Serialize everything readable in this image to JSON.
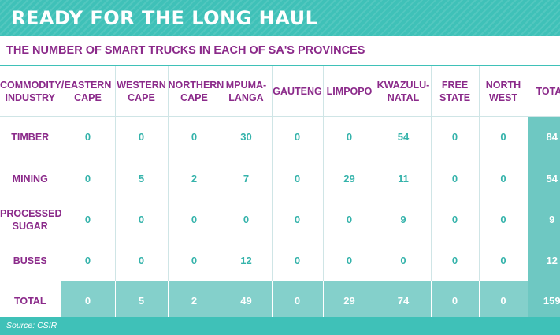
{
  "title": "READY FOR THE LONG HAUL",
  "subtitle": "THE NUMBER OF SMART TRUCKS IN EACH OF SA'S PROVINCES",
  "table": {
    "headers": [
      {
        "line1": "COMMODITY/",
        "line2": "INDUSTRY"
      },
      {
        "line1": "EASTERN",
        "line2": "CAPE"
      },
      {
        "line1": "WESTERN",
        "line2": "CAPE"
      },
      {
        "line1": "NORTHERN",
        "line2": "CAPE"
      },
      {
        "line1": "MPUMA-",
        "line2": "LANGA"
      },
      {
        "line1": "GAUTENG",
        "line2": ""
      },
      {
        "line1": "LIMPOPO",
        "line2": ""
      },
      {
        "line1": "KWAZULU-",
        "line2": "NATAL"
      },
      {
        "line1": "FREE",
        "line2": "STATE"
      },
      {
        "line1": "NORTH",
        "line2": "WEST"
      },
      {
        "line1": "TOTAL",
        "line2": ""
      }
    ],
    "rows": [
      {
        "label1": "TIMBER",
        "label2": "",
        "values": [
          "0",
          "0",
          "0",
          "30",
          "0",
          "0",
          "54",
          "0",
          "0",
          "84"
        ]
      },
      {
        "label1": "MINING",
        "label2": "",
        "values": [
          "0",
          "5",
          "2",
          "7",
          "0",
          "29",
          "11",
          "0",
          "0",
          "54"
        ]
      },
      {
        "label1": "PROCESSED",
        "label2": "SUGAR",
        "values": [
          "0",
          "0",
          "0",
          "0",
          "0",
          "0",
          "9",
          "0",
          "0",
          "9"
        ]
      },
      {
        "label1": "BUSES",
        "label2": "",
        "values": [
          "0",
          "0",
          "0",
          "12",
          "0",
          "0",
          "0",
          "0",
          "0",
          "12"
        ]
      },
      {
        "label1": "TOTAL",
        "label2": "",
        "values": [
          "0",
          "5",
          "2",
          "49",
          "0",
          "29",
          "74",
          "0",
          "0",
          "159"
        ]
      }
    ]
  },
  "source": "Source: CSIR",
  "colors": {
    "teal": "#3fc1b8",
    "purple": "#8b2a8a",
    "total_fill": "#6ec8c2"
  }
}
